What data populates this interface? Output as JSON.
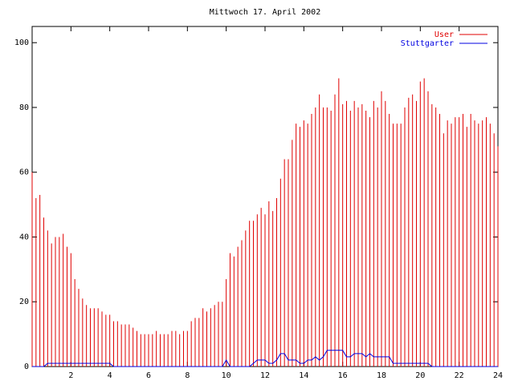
{
  "chart_data": {
    "type": "line",
    "title": "Mittwoch 17. April 2002",
    "x": [
      0,
      0.2,
      0.4,
      0.6,
      0.8,
      1,
      1.2,
      1.4,
      1.6,
      1.8,
      2,
      2.2,
      2.4,
      2.6,
      2.8,
      3,
      3.2,
      3.4,
      3.6,
      3.8,
      4,
      4.2,
      4.4,
      4.6,
      4.8,
      5,
      5.2,
      5.4,
      5.6,
      5.8,
      6,
      6.2,
      6.4,
      6.6,
      6.8,
      7,
      7.2,
      7.4,
      7.6,
      7.8,
      8,
      8.2,
      8.4,
      8.6,
      8.8,
      9,
      9.2,
      9.4,
      9.6,
      9.8,
      10,
      10.2,
      10.4,
      10.6,
      10.8,
      11,
      11.2,
      11.4,
      11.6,
      11.8,
      12,
      12.2,
      12.4,
      12.6,
      12.8,
      13,
      13.2,
      13.4,
      13.6,
      13.8,
      14,
      14.2,
      14.4,
      14.6,
      14.8,
      15,
      15.2,
      15.4,
      15.6,
      15.8,
      16,
      16.2,
      16.4,
      16.6,
      16.8,
      17,
      17.2,
      17.4,
      17.6,
      17.8,
      18,
      18.2,
      18.4,
      18.6,
      18.8,
      19,
      19.2,
      19.4,
      19.6,
      19.8,
      20,
      20.2,
      20.4,
      20.6,
      20.8,
      21,
      21.2,
      21.4,
      21.6,
      21.8,
      22,
      22.2,
      22.4,
      22.6,
      22.8,
      23,
      23.2,
      23.4,
      23.6,
      23.8,
      24
    ],
    "series": [
      {
        "name": "User",
        "color": "#e00000",
        "style": "impulses",
        "values": [
          60,
          52,
          53,
          46,
          42,
          38,
          40,
          40,
          41,
          37,
          35,
          27,
          24,
          21,
          19,
          18,
          18,
          18,
          17,
          16,
          16,
          14,
          14,
          13,
          13,
          13,
          12,
          11,
          10,
          10,
          10,
          10,
          11,
          10,
          10,
          10,
          11,
          11,
          10,
          11,
          11,
          14,
          15,
          15,
          18,
          17,
          18,
          19,
          20,
          20,
          27,
          35,
          34,
          37,
          39,
          42,
          45,
          45,
          47,
          49,
          47,
          51,
          48,
          52,
          58,
          64,
          64,
          70,
          75,
          74,
          76,
          75,
          78,
          80,
          84,
          80,
          80,
          79,
          84,
          89,
          81,
          82,
          79,
          82,
          80,
          81,
          79,
          77,
          82,
          80,
          85,
          82,
          78,
          75,
          75,
          75,
          80,
          83,
          84,
          82,
          88,
          89,
          85,
          81,
          80,
          78,
          72,
          76,
          75,
          77,
          77,
          78,
          74,
          78,
          76,
          75,
          76,
          77,
          75,
          72,
          68
        ]
      },
      {
        "name": "Stuttgarter",
        "color": "#0000e0",
        "style": "line",
        "values": [
          0,
          0,
          0,
          0,
          1,
          1,
          1,
          1,
          1,
          1,
          1,
          1,
          1,
          1,
          1,
          1,
          1,
          1,
          1,
          1,
          1,
          0,
          0,
          0,
          0,
          0,
          0,
          0,
          0,
          0,
          0,
          0,
          0,
          0,
          0,
          0,
          0,
          0,
          0,
          0,
          0,
          0,
          0,
          0,
          0,
          0,
          0,
          0,
          0,
          0,
          2,
          0,
          0,
          0,
          0,
          0,
          0,
          1,
          2,
          2,
          2,
          1,
          1,
          2,
          4,
          4,
          2,
          2,
          2,
          1,
          1,
          2,
          2,
          3,
          2,
          3,
          5,
          5,
          5,
          5,
          5,
          3,
          3,
          4,
          4,
          4,
          3,
          4,
          3,
          3,
          3,
          3,
          3,
          1,
          1,
          1,
          1,
          1,
          1,
          1,
          1,
          1,
          1,
          0,
          0,
          0,
          0,
          0,
          0,
          0,
          0,
          0,
          0,
          0,
          0,
          0,
          0,
          0,
          0,
          0,
          0
        ]
      }
    ],
    "xlim": [
      0,
      24
    ],
    "xticks": [
      2,
      4,
      6,
      8,
      10,
      12,
      14,
      16,
      18,
      20,
      22,
      24
    ],
    "ylim": [
      0,
      105
    ],
    "yticks": [
      0,
      20,
      40,
      60,
      80,
      100
    ],
    "legend": "top-right"
  }
}
